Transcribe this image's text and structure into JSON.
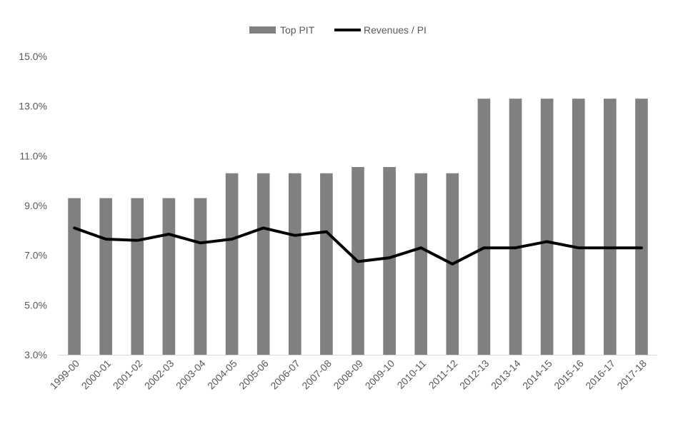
{
  "chart_data": {
    "type": "bar",
    "categories": [
      "1999-00",
      "2000-01",
      "2001-02",
      "2002-03",
      "2003-04",
      "2004-05",
      "2005-06",
      "2006-07",
      "2007-08",
      "2008-09",
      "2009-10",
      "2010-11",
      "2011-12",
      "2012-13",
      "2013-14",
      "2014-15",
      "2015-16",
      "2016-17",
      "2017-18"
    ],
    "series": [
      {
        "name": "Top PIT",
        "type": "bar",
        "color": "#808080",
        "values": [
          9.3,
          9.3,
          9.3,
          9.3,
          9.3,
          10.3,
          10.3,
          10.3,
          10.3,
          10.55,
          10.55,
          10.3,
          10.3,
          13.3,
          13.3,
          13.3,
          13.3,
          13.3,
          13.3
        ]
      },
      {
        "name": "Revenues / PI",
        "type": "line",
        "color": "#000000",
        "values": [
          8.1,
          7.65,
          7.6,
          7.85,
          7.5,
          7.65,
          8.1,
          7.8,
          7.95,
          6.75,
          6.9,
          7.3,
          6.65,
          7.3,
          7.3,
          7.55,
          7.3,
          7.3,
          7.3
        ]
      }
    ],
    "ylim": [
      3,
      15
    ],
    "yticks": [
      "3.0%",
      "5.0%",
      "7.0%",
      "9.0%",
      "11.0%",
      "13.0%",
      "15.0%"
    ],
    "ytick_values": [
      3,
      5,
      7,
      9,
      11,
      13,
      15
    ],
    "legend_position": "top-center",
    "grid": false
  }
}
